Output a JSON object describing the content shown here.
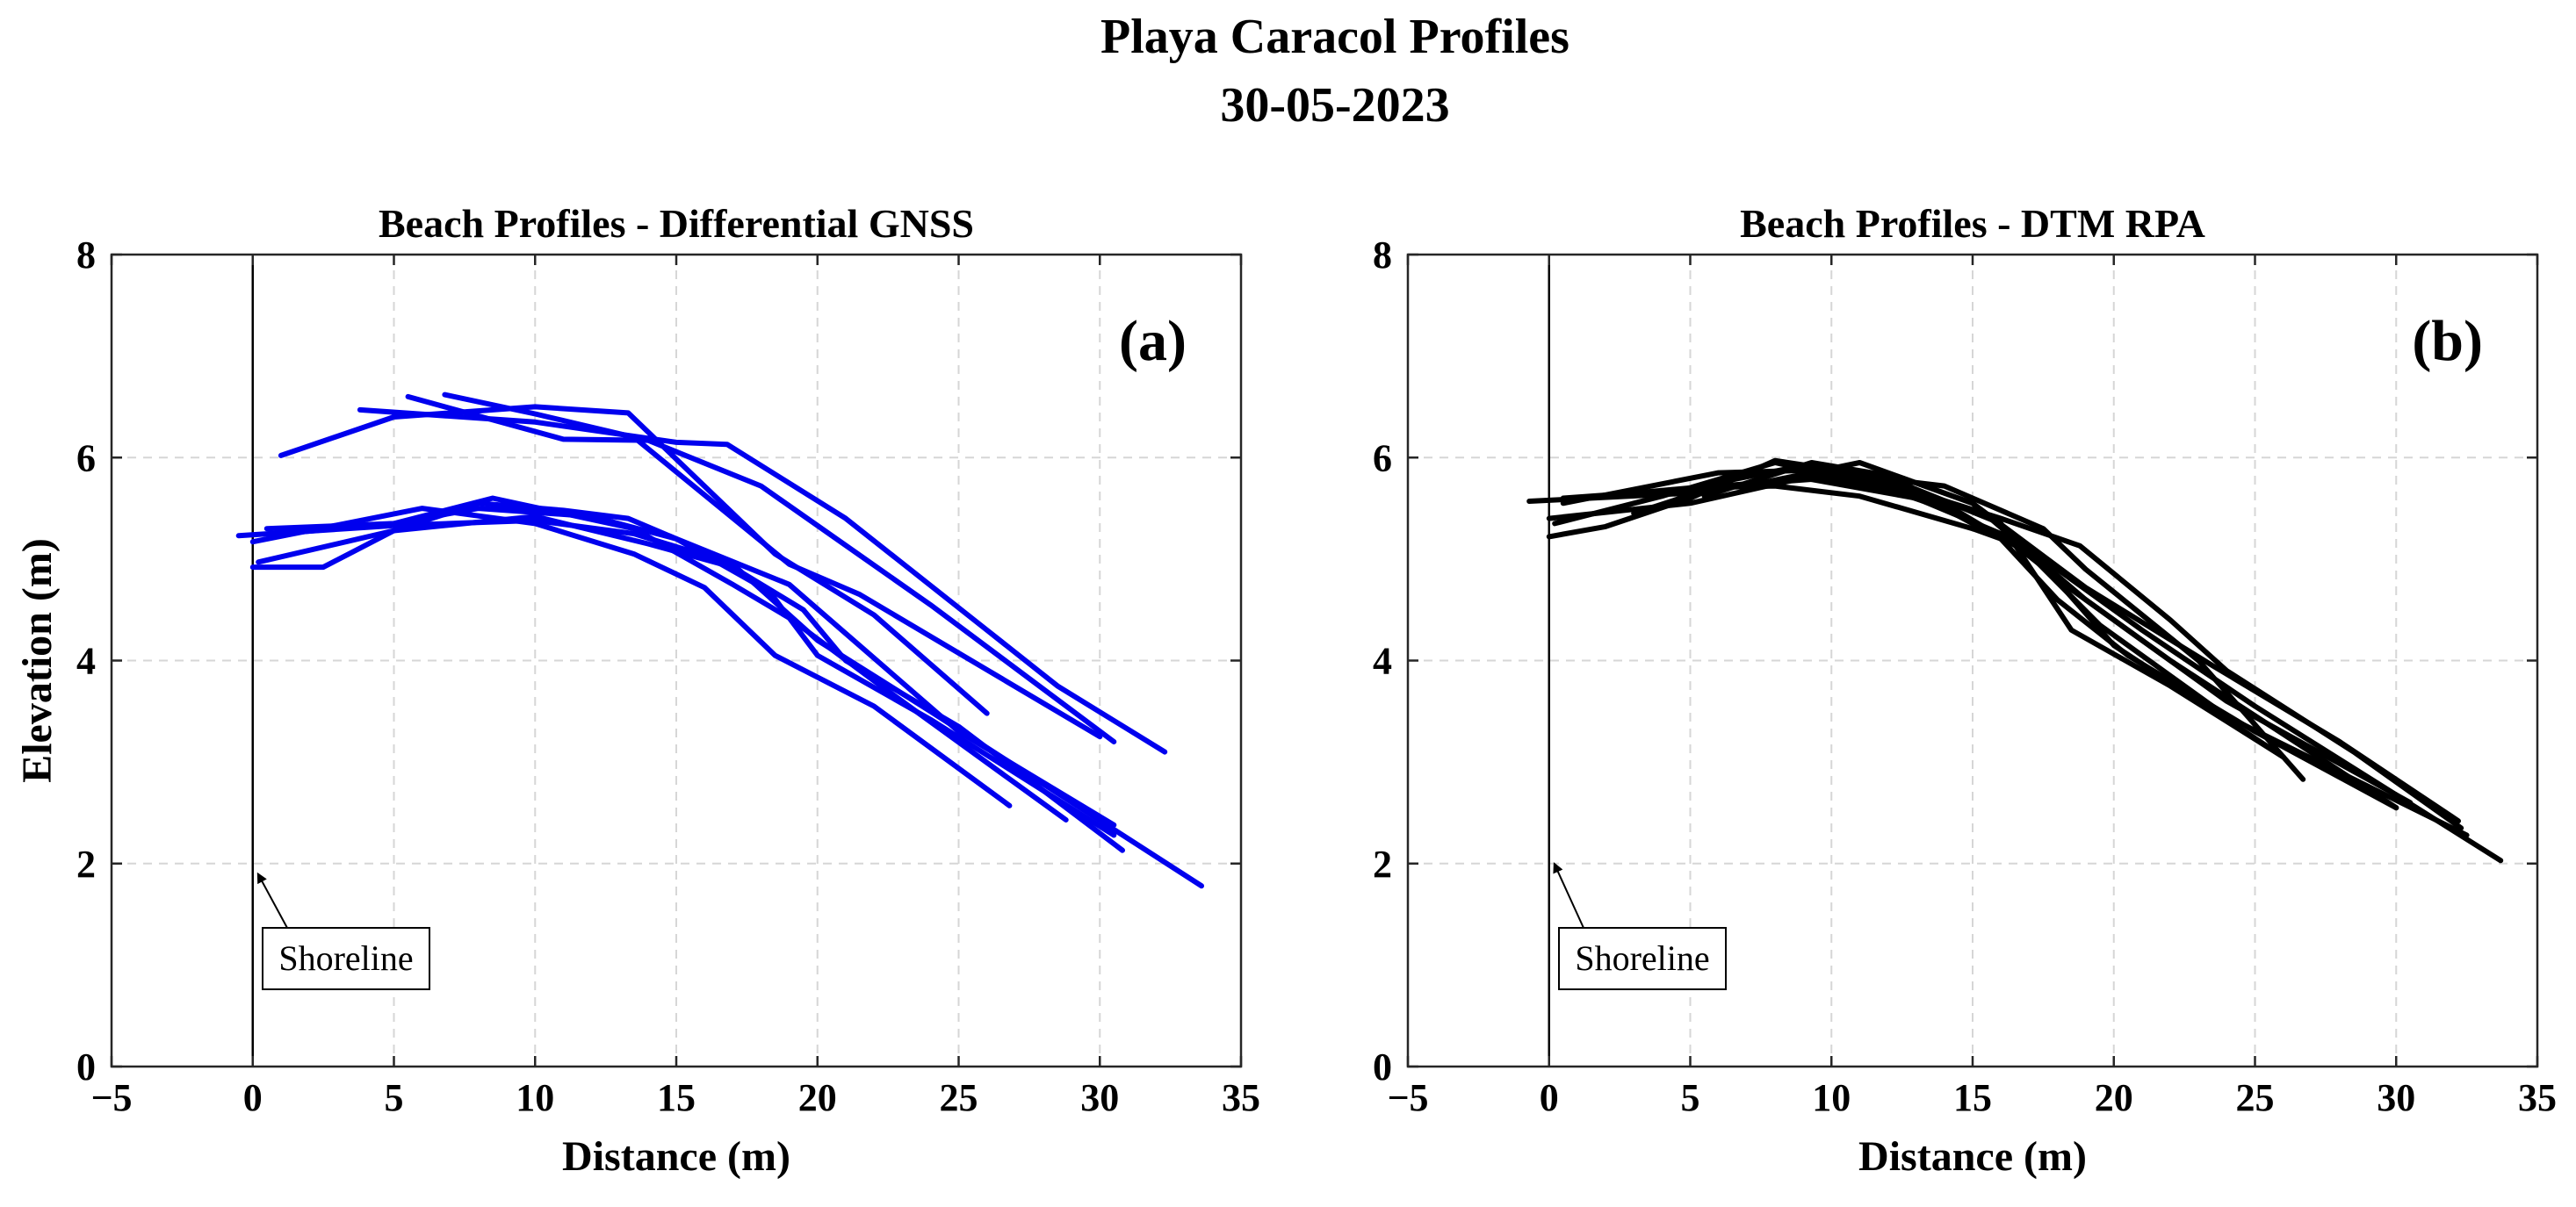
{
  "figure": {
    "title_line1": "Playa Caracol Profiles",
    "title_line2": "30-05-2023"
  },
  "chart_data": [
    {
      "type": "line",
      "title": "Beach Profiles - Differential GNSS",
      "panel_tag": "(a)",
      "xlabel": "Distance (m)",
      "ylabel": "Elevation (m)",
      "xlim": [
        -5,
        35
      ],
      "ylim": [
        0,
        8
      ],
      "xticks": [
        -5,
        0,
        5,
        10,
        15,
        20,
        25,
        30,
        35
      ],
      "yticks": [
        0,
        2,
        4,
        6,
        8
      ],
      "grid": true,
      "line_color": "#0000ee",
      "shoreline_x": 0,
      "annotation": {
        "text": "Shoreline",
        "arrow_to": [
          0,
          1.95
        ]
      },
      "series": [
        {
          "points": [
            [
              1,
              6.02
            ],
            [
              5,
              6.4
            ],
            [
              10,
              6.5
            ],
            [
              13.3,
              6.44
            ],
            [
              18.5,
              5.05
            ],
            [
              22,
              4.45
            ],
            [
              26,
              3.48
            ]
          ]
        },
        {
          "points": [
            [
              3.8,
              6.47
            ],
            [
              10,
              6.35
            ],
            [
              15,
              6.15
            ],
            [
              16.8,
              6.13
            ],
            [
              21,
              5.4
            ],
            [
              26,
              4.3
            ],
            [
              28.5,
              3.75
            ],
            [
              32.3,
              3.1
            ]
          ]
        },
        {
          "points": [
            [
              5.5,
              6.6
            ],
            [
              11,
              6.18
            ],
            [
              14,
              6.17
            ],
            [
              18,
              5.72
            ],
            [
              24,
              4.55
            ],
            [
              30.5,
              3.2
            ]
          ]
        },
        {
          "points": [
            [
              6.8,
              6.62
            ],
            [
              10,
              6.43
            ],
            [
              13.5,
              6.2
            ],
            [
              19,
              4.95
            ],
            [
              21.5,
              4.65
            ],
            [
              30,
              3.25
            ]
          ]
        },
        {
          "points": [
            [
              -0.5,
              5.23
            ],
            [
              5,
              5.33
            ],
            [
              10,
              5.38
            ],
            [
              13.5,
              5.25
            ],
            [
              17,
              4.95
            ],
            [
              20,
              4.2
            ],
            [
              24,
              3.5
            ],
            [
              33.6,
              1.78
            ]
          ]
        },
        {
          "points": [
            [
              0,
              4.92
            ],
            [
              2.5,
              4.92
            ],
            [
              5,
              5.28
            ],
            [
              8,
              5.55
            ],
            [
              11,
              5.48
            ],
            [
              13.3,
              5.4
            ],
            [
              15,
              5.2
            ],
            [
              19,
              4.75
            ],
            [
              25,
              3.3
            ],
            [
              30.5,
              2.38
            ]
          ]
        },
        {
          "points": [
            [
              0.5,
              5.3
            ],
            [
              5,
              5.35
            ],
            [
              8.5,
              5.6
            ],
            [
              13.5,
              5.3
            ],
            [
              17,
              4.75
            ],
            [
              19,
              4.42
            ],
            [
              22,
              3.8
            ],
            [
              28.8,
              2.43
            ]
          ]
        },
        {
          "points": [
            [
              0,
              5.17
            ],
            [
              6,
              5.5
            ],
            [
              10,
              5.35
            ],
            [
              13.5,
              5.05
            ],
            [
              16,
              4.72
            ],
            [
              18.5,
              4.05
            ],
            [
              22,
              3.55
            ],
            [
              26.8,
              2.57
            ]
          ]
        },
        {
          "points": [
            [
              0.2,
              4.97
            ],
            [
              5,
              5.28
            ],
            [
              10,
              5.42
            ],
            [
              14,
              5.15
            ],
            [
              17,
              4.92
            ],
            [
              19.5,
              4.5
            ],
            [
              21,
              4.0
            ],
            [
              25,
              3.35
            ],
            [
              30.8,
              2.13
            ]
          ]
        },
        {
          "points": [
            [
              1,
              5.25
            ],
            [
              5,
              5.35
            ],
            [
              8,
              5.5
            ],
            [
              12,
              5.42
            ],
            [
              15,
              5.2
            ],
            [
              18.3,
              4.68
            ],
            [
              20,
              4.05
            ],
            [
              24,
              3.42
            ],
            [
              30.5,
              2.28
            ]
          ]
        }
      ]
    },
    {
      "type": "line",
      "title": "Beach Profiles - DTM RPA",
      "panel_tag": "(b)",
      "xlabel": "Distance (m)",
      "ylabel": "",
      "xlim": [
        -5,
        35
      ],
      "ylim": [
        0,
        8
      ],
      "xticks": [
        -5,
        0,
        5,
        10,
        15,
        20,
        25,
        30,
        35
      ],
      "yticks": [
        0,
        2,
        4,
        6,
        8
      ],
      "grid": true,
      "line_color": "#000000",
      "shoreline_x": 0,
      "annotation": {
        "text": "Shoreline",
        "arrow_to": [
          0,
          2.05
        ]
      },
      "series": [
        {
          "points": [
            [
              -0.7,
              5.57
            ],
            [
              5,
              5.65
            ],
            [
              10,
              5.85
            ],
            [
              14,
              5.72
            ],
            [
              17.5,
              5.3
            ],
            [
              19,
              4.9
            ],
            [
              23,
              4.0
            ],
            [
              26.7,
              2.83
            ]
          ]
        },
        {
          "points": [
            [
              0,
              5.22
            ],
            [
              2,
              5.32
            ],
            [
              5,
              5.6
            ],
            [
              8,
              5.97
            ],
            [
              12,
              5.8
            ],
            [
              16,
              5.35
            ],
            [
              18.5,
              4.3
            ],
            [
              22,
              3.75
            ],
            [
              26,
              3.05
            ]
          ]
        },
        {
          "points": [
            [
              0,
              5.4
            ],
            [
              5,
              5.55
            ],
            [
              9,
              5.8
            ],
            [
              13,
              5.6
            ],
            [
              16,
              5.25
            ],
            [
              18.5,
              4.7
            ],
            [
              22,
              4.0
            ],
            [
              30,
              2.55
            ]
          ]
        },
        {
          "points": [
            [
              0.5,
              5.6
            ],
            [
              3,
              5.65
            ],
            [
              7,
              5.72
            ],
            [
              11,
              5.95
            ],
            [
              15,
              5.55
            ],
            [
              19,
              4.6
            ],
            [
              21,
              4.2
            ],
            [
              24,
              3.6
            ],
            [
              30.5,
              2.6
            ]
          ]
        },
        {
          "points": [
            [
              0.5,
              5.55
            ],
            [
              6,
              5.85
            ],
            [
              10,
              5.88
            ],
            [
              14,
              5.5
            ],
            [
              17,
              5.1
            ],
            [
              21,
              4.3
            ],
            [
              25,
              3.55
            ],
            [
              33.7,
              2.03
            ]
          ]
        },
        {
          "points": [
            [
              1,
              5.6
            ],
            [
              5,
              5.7
            ],
            [
              9,
              5.92
            ],
            [
              12,
              5.75
            ],
            [
              16,
              5.4
            ],
            [
              18.8,
              5.13
            ],
            [
              22,
              4.4
            ],
            [
              24,
              3.9
            ],
            [
              28.5,
              3.1
            ],
            [
              32.3,
              2.35
            ]
          ]
        },
        {
          "points": [
            [
              5.5,
              5.62
            ],
            [
              9.3,
              5.95
            ],
            [
              12.5,
              5.8
            ],
            [
              15,
              5.55
            ],
            [
              19,
              4.72
            ],
            [
              23.5,
              3.95
            ],
            [
              28,
              3.2
            ],
            [
              32.2,
              2.42
            ]
          ]
        },
        {
          "points": [
            [
              3,
              5.45
            ],
            [
              6,
              5.72
            ],
            [
              10,
              5.8
            ],
            [
              14,
              5.55
            ],
            [
              17,
              5.05
            ],
            [
              19.5,
              4.35
            ],
            [
              24,
              3.45
            ],
            [
              32.5,
              2.28
            ]
          ]
        },
        {
          "points": [
            [
              0.2,
              5.35
            ],
            [
              4,
              5.62
            ],
            [
              8,
              5.95
            ],
            [
              13,
              5.65
            ],
            [
              16,
              5.2
            ],
            [
              18,
              4.6
            ],
            [
              20.5,
              4.05
            ],
            [
              25,
              3.3
            ],
            [
              30,
              2.55
            ]
          ]
        },
        {
          "points": [
            [
              5,
              5.7
            ],
            [
              8,
              5.72
            ],
            [
              11,
              5.62
            ],
            [
              15,
              5.3
            ],
            [
              17,
              5.1
            ],
            [
              20,
              4.15
            ],
            [
              23,
              3.6
            ],
            [
              26,
              3.05
            ]
          ]
        }
      ]
    }
  ]
}
